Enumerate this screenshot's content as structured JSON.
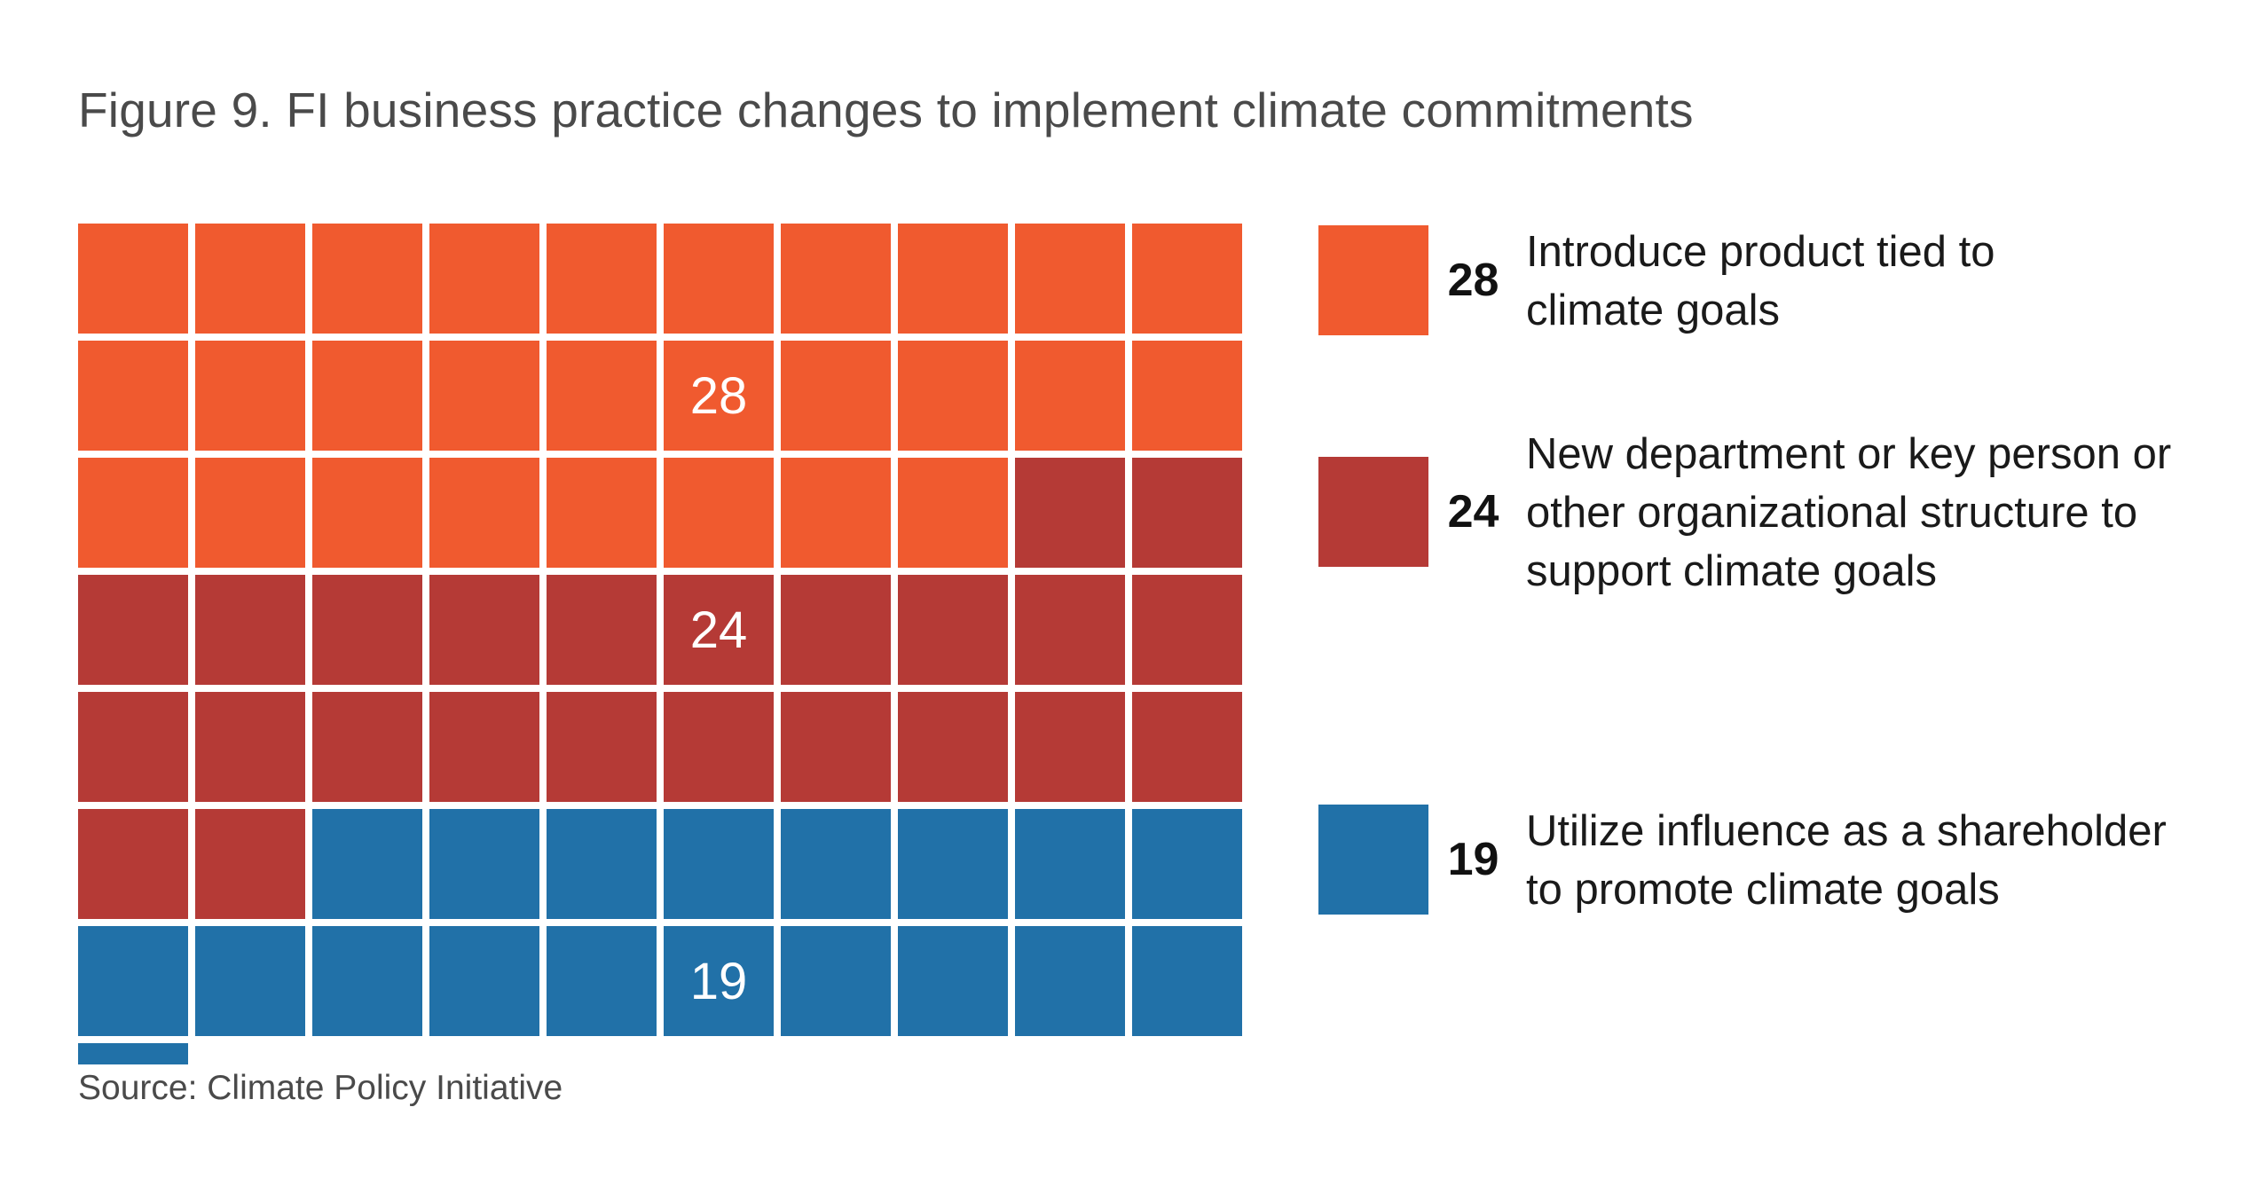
{
  "title": "Figure 9. FI business practice changes to implement climate commitments",
  "source": "Source: Climate Policy Initiative",
  "chart_data": {
    "type": "waffle",
    "columns": 10,
    "rows": 7,
    "series": [
      {
        "name": "Introduce product tied to climate goals",
        "value": 28,
        "label": "28",
        "color": "#F05A2F"
      },
      {
        "name": "New department or key person or other organizational structure to support climate goals",
        "value": 24,
        "label": "24",
        "color": "#B53A36"
      },
      {
        "name": "Utilize influence as a shareholder to promote climate goals",
        "value": 19,
        "label": "19",
        "color": "#2171A8"
      }
    ],
    "legend": [
      {
        "value": "28",
        "lines": [
          "Introduce product tied to",
          "climate goals"
        ]
      },
      {
        "value": "24",
        "lines": [
          "New department or key person or",
          "other organizational structure to",
          "support climate goals"
        ]
      },
      {
        "value": "19",
        "lines": [
          "Utilize influence as a shareholder",
          "to promote climate goals"
        ]
      }
    ]
  }
}
